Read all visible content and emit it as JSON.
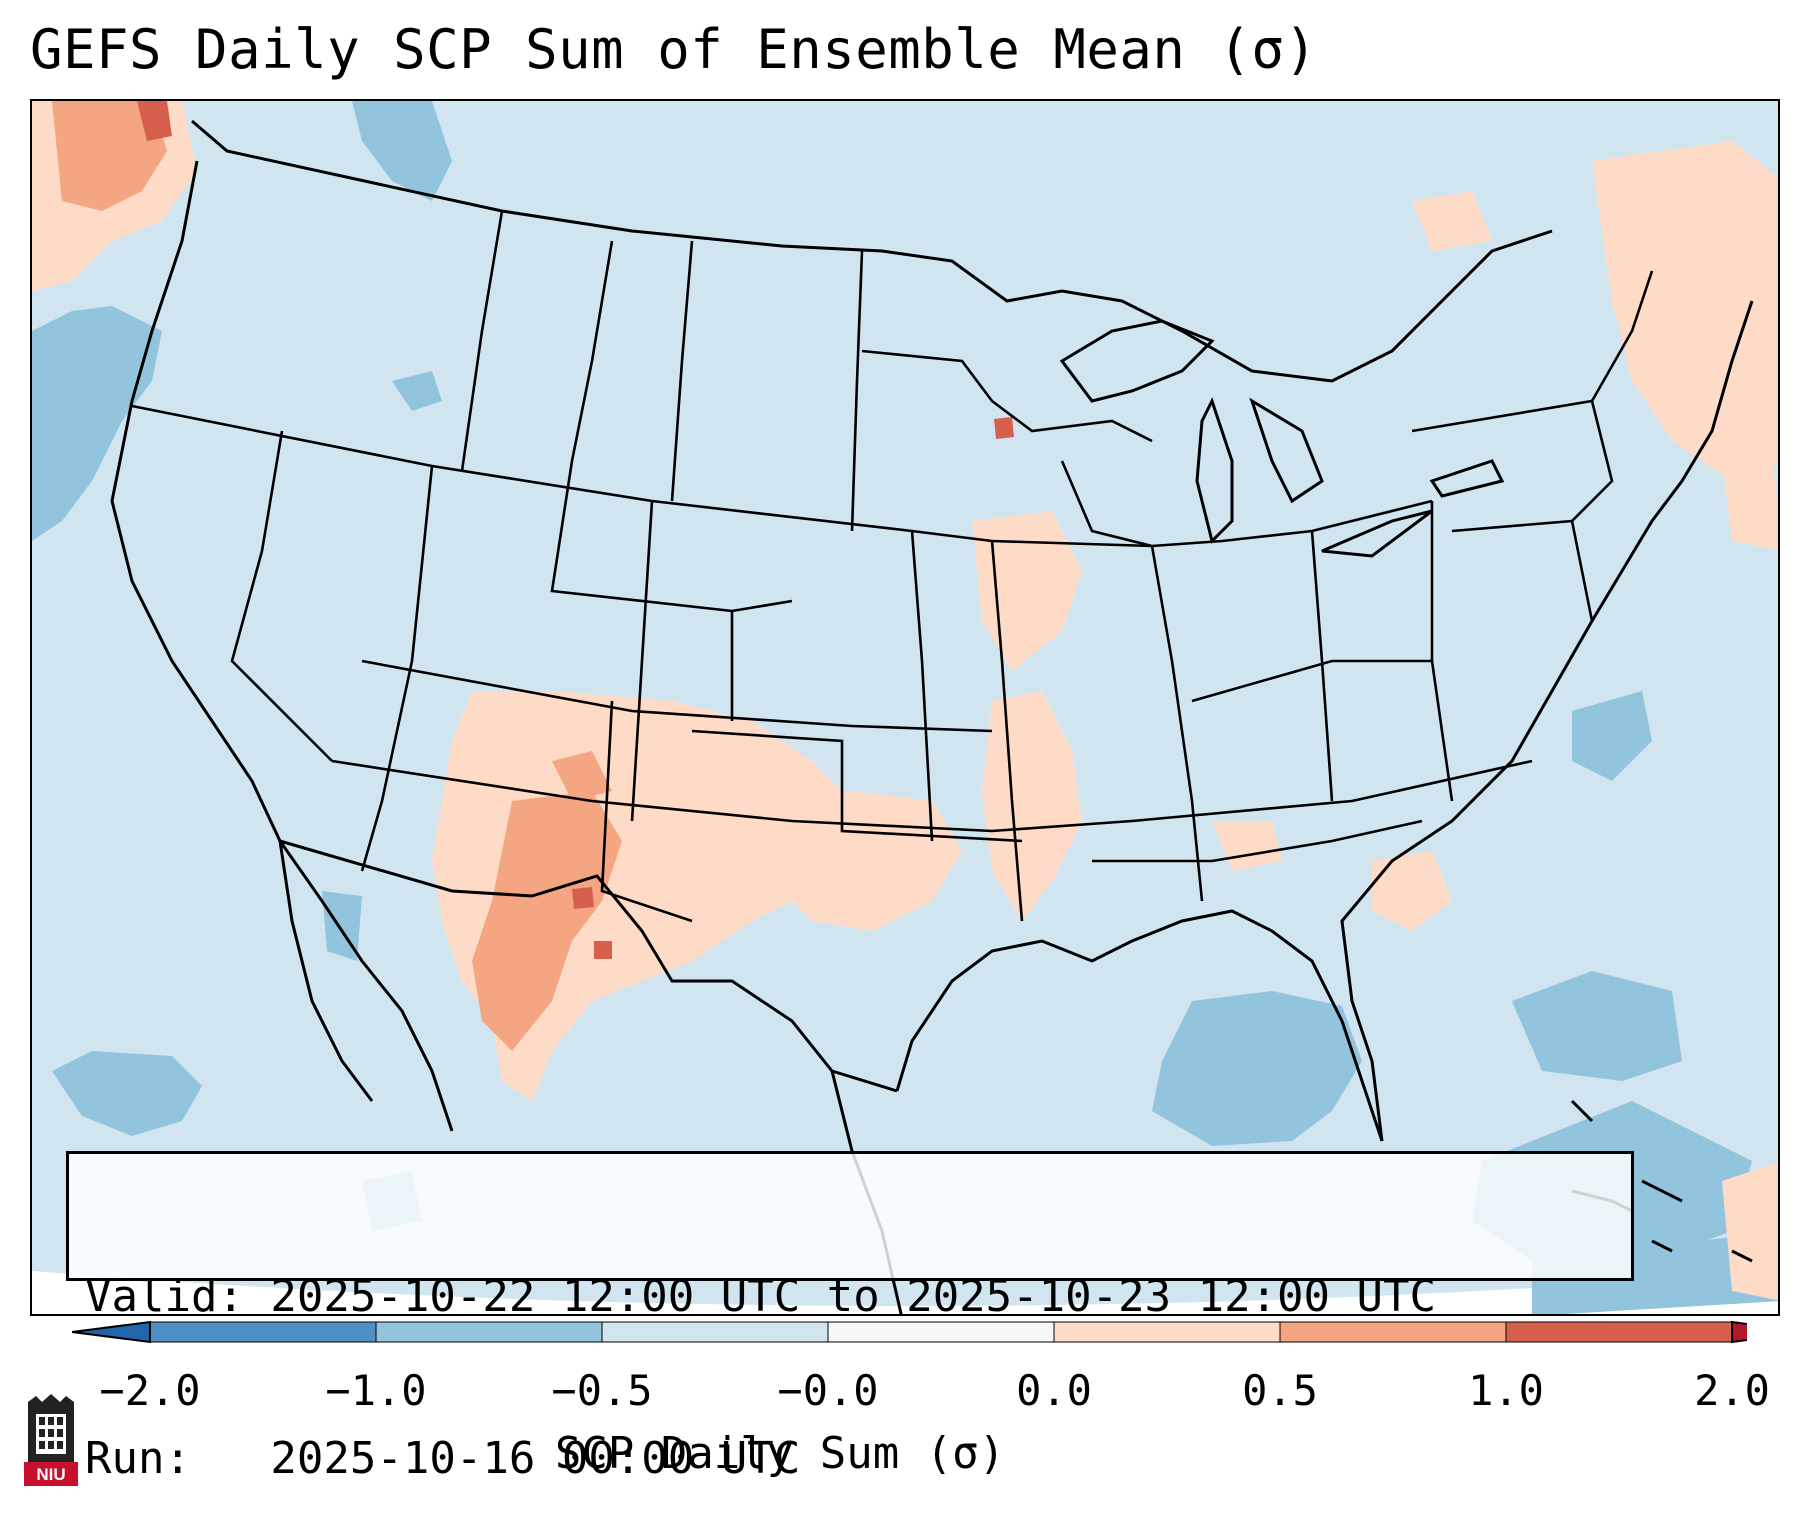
{
  "title": "GEFS Daily SCP Sum of Ensemble Mean (σ)",
  "info": {
    "valid_line": "Valid: 2025-10-22 12:00 UTC to 2025-10-23 12:00 UTC",
    "run_line": "Run:   2025-10-16 00:00 UTC"
  },
  "colorbar": {
    "label": "SCP Daily Sum (σ)",
    "tick_labels": [
      "−2.0",
      "−1.0",
      "−0.5",
      "−0.0",
      "0.0",
      "0.5",
      "1.0",
      "2.0"
    ],
    "bins": [
      {
        "from": -2.0,
        "to": -1.0,
        "color": "#4f90c4"
      },
      {
        "from": -1.0,
        "to": -0.5,
        "color": "#92c4de"
      },
      {
        "from": -0.5,
        "to": 0.0,
        "color": "#d1e5f0"
      },
      {
        "from": 0.0,
        "to": 0.0,
        "color": "#f7f7f7"
      },
      {
        "from": 0.0,
        "to": 0.5,
        "color": "#fddbc7"
      },
      {
        "from": 0.5,
        "to": 1.0,
        "color": "#f4a582"
      },
      {
        "from": 1.0,
        "to": 2.0,
        "color": "#d6604d"
      }
    ],
    "under_color": "#2166ac",
    "over_color": "#b2182b"
  },
  "logo": {
    "text": "NIU",
    "icon": "niu-tower-logo"
  },
  "map": {
    "projection": "lambert-conformal",
    "background_color": "#d1e5f0",
    "region": "CONUS",
    "icon": "us-states-boundaries"
  }
}
